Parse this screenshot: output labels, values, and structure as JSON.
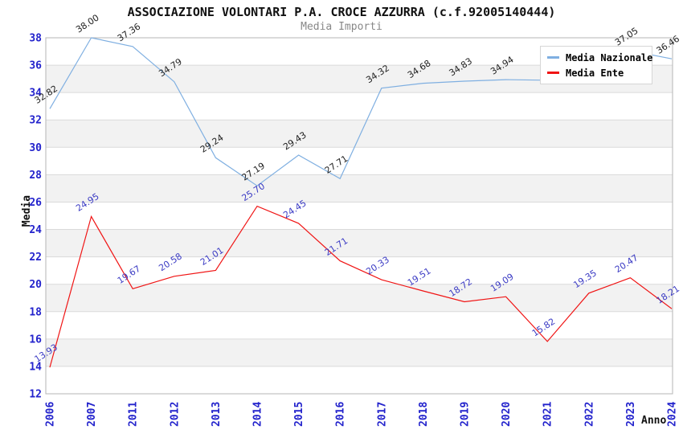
{
  "header": {
    "title": "ASSOCIAZIONE VOLONTARI P.A. CROCE AZZURRA (c.f.92005140444)",
    "subtitle": "Media Importi"
  },
  "chart_data": {
    "type": "line",
    "title": "ASSOCIAZIONE VOLONTARI P.A. CROCE AZZURRA (c.f.92005140444)",
    "subtitle": "Media Importi",
    "xlabel": "Anno",
    "ylabel": "Media",
    "ylim": [
      12,
      38
    ],
    "yticks": [
      12,
      14,
      16,
      18,
      20,
      22,
      24,
      26,
      28,
      30,
      32,
      34,
      36,
      38
    ],
    "grid": true,
    "band_color": "#f2f2f2",
    "grid_color": "#dadada",
    "frame_color": "#b5b5b5",
    "tick_color": "#2323cc",
    "legend_position": "top-right",
    "categories": [
      "2006",
      "2007",
      "2011",
      "2012",
      "2013",
      "2014",
      "2015",
      "2016",
      "2017",
      "2018",
      "2019",
      "2020",
      "2021",
      "2022",
      "2023",
      "2024"
    ],
    "series": [
      {
        "name": "Media Nazionale",
        "color": "#7fafe1",
        "label_color": "#222222",
        "values": [
          32.82,
          38.0,
          37.36,
          34.79,
          29.24,
          27.19,
          29.43,
          27.71,
          34.32,
          34.68,
          34.83,
          34.94,
          34.9,
          34.8,
          37.05,
          36.46
        ],
        "labels": [
          "32.82",
          "38.00",
          "37.36",
          "34.79",
          "29.24",
          "27.19",
          "29.43",
          "27.71",
          "34.32",
          "34.68",
          "34.83",
          "34.94",
          "",
          "",
          "37.05",
          "36.46"
        ]
      },
      {
        "name": "Media Ente",
        "color": "#f01414",
        "label_color": "#3b3bc4",
        "values": [
          13.93,
          24.95,
          19.67,
          20.58,
          21.01,
          25.7,
          24.45,
          21.71,
          20.33,
          19.51,
          18.72,
          19.09,
          15.82,
          19.35,
          20.47,
          18.21
        ],
        "labels": [
          "13.93",
          "24.95",
          "19.67",
          "20.58",
          "21.01",
          "25.70",
          "24.45",
          "21.71",
          "20.33",
          "19.51",
          "18.72",
          "19.09",
          "15.82",
          "19.35",
          "20.47",
          "18.21"
        ]
      }
    ]
  }
}
